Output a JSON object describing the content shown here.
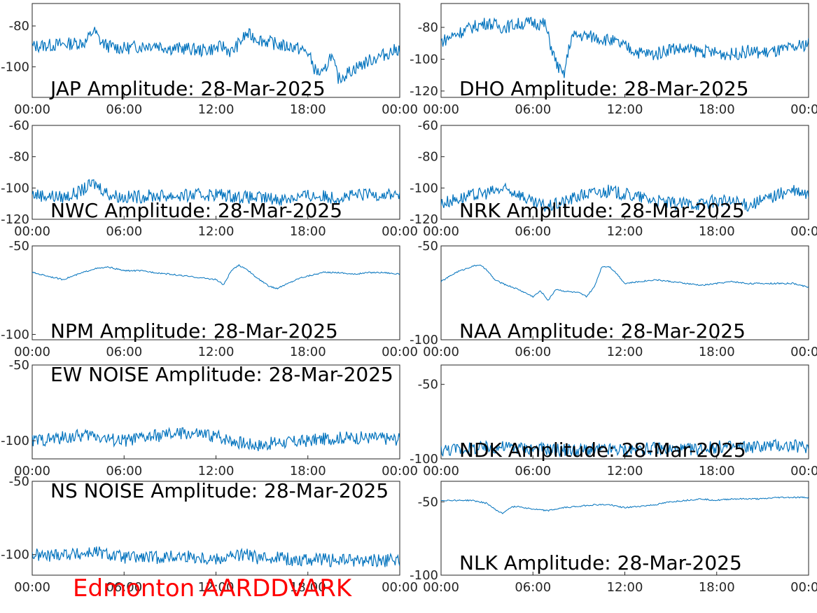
{
  "footer": {
    "label": "Edmonton AARDDVARK",
    "color": "#ff0000"
  },
  "style": {
    "line_color": "#0072bd",
    "axis_color": "#262626"
  },
  "chart_data": [
    {
      "type": "line",
      "title": "JAP Amplitude: 28-Mar-2025",
      "xlabel": "",
      "ylabel": "",
      "xticks": [
        "00:00",
        "06:00",
        "12:00",
        "18:00",
        "00:00"
      ],
      "ylim": [
        -115,
        -69
      ],
      "yticks": [
        -80,
        -100
      ],
      "noisy": true,
      "series": [
        {
          "x": [
            0,
            2,
            3.5,
            4,
            4.5,
            5,
            6,
            7,
            8,
            9,
            10,
            11,
            12,
            12.5,
            13,
            14,
            15,
            16,
            16.5,
            17,
            18,
            18.5,
            19,
            19.5,
            20,
            21,
            22,
            23,
            24
          ],
          "y": [
            -90,
            -89,
            -88,
            -82,
            -88,
            -90,
            -91,
            -90,
            -89,
            -91,
            -91,
            -92,
            -91,
            -90,
            -93,
            -84,
            -87,
            -89,
            -90,
            -90,
            -93,
            -102,
            -104,
            -94,
            -106,
            -101,
            -97,
            -94,
            -91
          ]
        }
      ]
    },
    {
      "type": "line",
      "title": "DHO Amplitude: 28-Mar-2025",
      "xlabel": "",
      "ylabel": "",
      "xticks": [
        "00:00",
        "06:00",
        "12:00",
        "18:00",
        "00:00"
      ],
      "ylim": [
        -124,
        -65
      ],
      "yticks": [
        -80,
        -100,
        -120
      ],
      "noisy": true,
      "series": [
        {
          "x": [
            0,
            1,
            2,
            3,
            4,
            5,
            6,
            6.8,
            7,
            7.5,
            8,
            8.5,
            9,
            10,
            11,
            12,
            13,
            14,
            15,
            16,
            17,
            18,
            19,
            20,
            21,
            22,
            23,
            24
          ],
          "y": [
            -89,
            -84,
            -80,
            -77,
            -80,
            -78,
            -77,
            -78,
            -86,
            -102,
            -111,
            -86,
            -85,
            -86,
            -88,
            -92,
            -96,
            -97,
            -93,
            -94,
            -95,
            -96,
            -97,
            -95,
            -96,
            -95,
            -93,
            -90
          ]
        }
      ]
    },
    {
      "type": "line",
      "title": "NWC Amplitude: 28-Mar-2025",
      "xlabel": "",
      "ylabel": "",
      "xticks": [
        "00:00",
        "06:00",
        "12:00",
        "18:00",
        "00:00"
      ],
      "ylim": [
        -120,
        -60
      ],
      "yticks": [
        -60,
        -80,
        -100,
        -120
      ],
      "noisy": true,
      "series": [
        {
          "x": [
            0,
            2,
            3,
            4,
            4.5,
            5,
            6,
            8,
            10,
            12,
            14,
            16,
            16.5,
            17,
            18,
            20,
            22,
            24
          ],
          "y": [
            -104,
            -106,
            -103,
            -97,
            -100,
            -104,
            -106,
            -105,
            -105,
            -104,
            -106,
            -107,
            -107,
            -106,
            -105,
            -106,
            -104,
            -104
          ]
        }
      ]
    },
    {
      "type": "line",
      "title": "NRK Amplitude: 28-Mar-2025",
      "xlabel": "",
      "ylabel": "",
      "xticks": [
        "00:00",
        "06:00",
        "12:00",
        "18:00",
        "00:00"
      ],
      "ylim": [
        -120,
        -60
      ],
      "yticks": [
        -60,
        -80,
        -100,
        -120
      ],
      "noisy": true,
      "series": [
        {
          "x": [
            0,
            1,
            2,
            3,
            4,
            5,
            6,
            7,
            8,
            9,
            10,
            11,
            12,
            13,
            14,
            15,
            16,
            17,
            18,
            19,
            20,
            21,
            22,
            23,
            24
          ],
          "y": [
            -110,
            -107,
            -105,
            -103,
            -101,
            -103,
            -110,
            -112,
            -109,
            -105,
            -103,
            -102,
            -104,
            -106,
            -108,
            -110,
            -110,
            -110,
            -108,
            -109,
            -111,
            -108,
            -104,
            -102,
            -105
          ]
        }
      ]
    },
    {
      "type": "line",
      "title": "NPM Amplitude: 28-Mar-2025",
      "xlabel": "",
      "ylabel": "",
      "xticks": [
        "00:00",
        "06:00",
        "12:00",
        "18:00",
        "00:00"
      ],
      "ylim": [
        -103,
        -50
      ],
      "yticks": [
        -50,
        -100
      ],
      "noisy": false,
      "series": [
        {
          "x": [
            0,
            1,
            2,
            3,
            4,
            5,
            6,
            7,
            8,
            9,
            10,
            11,
            12,
            12.5,
            13,
            13.5,
            14,
            14.5,
            15,
            15.5,
            16,
            16.5,
            17,
            17.5,
            18,
            19,
            20,
            21,
            22,
            23,
            24
          ],
          "y": [
            -65,
            -67,
            -69,
            -66,
            -63,
            -62,
            -64,
            -64,
            -65,
            -66,
            -67,
            -68,
            -69,
            -72,
            -64,
            -61,
            -63,
            -67,
            -70,
            -73,
            -74,
            -72,
            -70,
            -68,
            -67,
            -65,
            -65,
            -66,
            -65,
            -65,
            -66
          ]
        }
      ]
    },
    {
      "type": "line",
      "title": "NAA Amplitude: 28-Mar-2025",
      "xlabel": "",
      "ylabel": "",
      "xticks": [
        "00:00",
        "06:00",
        "12:00",
        "18:00",
        "00:00"
      ],
      "ylim": [
        -100,
        -50
      ],
      "yticks": [
        -50,
        -100
      ],
      "noisy": false,
      "series": [
        {
          "x": [
            0,
            1,
            2,
            2.5,
            3,
            3.5,
            4,
            5,
            6,
            6.5,
            7,
            7.5,
            8,
            9,
            9.5,
            10,
            10.5,
            11,
            11.5,
            12,
            13,
            14,
            15,
            16,
            17,
            18,
            19,
            20,
            21,
            22,
            23,
            24
          ],
          "y": [
            -69,
            -64,
            -61,
            -60,
            -63,
            -68,
            -70,
            -73,
            -77,
            -74,
            -79,
            -73,
            -74,
            -75,
            -77,
            -72,
            -61,
            -61,
            -65,
            -70,
            -69,
            -68,
            -69,
            -70,
            -71,
            -70,
            -69,
            -70,
            -70,
            -70,
            -70,
            -72
          ]
        }
      ]
    },
    {
      "type": "line",
      "title": "EW NOISE Amplitude: 28-Mar-2025",
      "xlabel": "",
      "ylabel": "",
      "xticks": [
        "00:00",
        "06:00",
        "12:00",
        "18:00",
        "00:00"
      ],
      "ylim": [
        -112,
        -50
      ],
      "yticks": [
        -50,
        -100
      ],
      "noisy": true,
      "series": [
        {
          "x": [
            0,
            2,
            3,
            4,
            5,
            6,
            8,
            10,
            11,
            12,
            14,
            15,
            16,
            17,
            18,
            20,
            22,
            24
          ],
          "y": [
            -100,
            -98,
            -97,
            -96,
            -99,
            -100,
            -97,
            -95,
            -96,
            -97,
            -102,
            -103,
            -101,
            -101,
            -100,
            -98,
            -98,
            -99
          ]
        }
      ]
    },
    {
      "type": "line",
      "title": "NDK Amplitude: 28-Mar-2025",
      "xlabel": "",
      "ylabel": "",
      "xticks": [
        "00:00",
        "06:00",
        "12:00",
        "18:00",
        "00:00"
      ],
      "ylim": [
        -100,
        -37
      ],
      "yticks": [
        -50,
        -100
      ],
      "noisy": true,
      "series": [
        {
          "x": [
            0,
            2,
            4,
            6,
            8,
            10,
            12,
            14,
            16,
            17,
            18,
            20,
            22,
            24
          ],
          "y": [
            -94,
            -93,
            -92,
            -93,
            -94,
            -94,
            -94,
            -93,
            -94,
            -93,
            -92,
            -92,
            -91,
            -92
          ]
        }
      ]
    },
    {
      "type": "line",
      "title": "NS NOISE Amplitude: 28-Mar-2025",
      "xlabel": "",
      "ylabel": "",
      "xticks": [
        "00:00",
        "06:00",
        "12:00",
        "18:00",
        "00:00"
      ],
      "ylim": [
        -114,
        -50
      ],
      "yticks": [
        -50,
        -100
      ],
      "noisy": true,
      "series": [
        {
          "x": [
            0,
            1,
            2,
            3,
            4,
            5,
            6,
            8,
            10,
            12,
            13,
            14,
            15,
            16,
            17,
            18,
            20,
            22,
            24
          ],
          "y": [
            -100,
            -101,
            -99,
            -100,
            -98,
            -100,
            -102,
            -102,
            -101,
            -103,
            -101,
            -100,
            -103,
            -101,
            -104,
            -103,
            -104,
            -104,
            -104
          ]
        }
      ]
    },
    {
      "type": "line",
      "title": "NLK Amplitude: 28-Mar-2025",
      "xlabel": "",
      "ylabel": "",
      "xticks": [
        "00:00",
        "06:00",
        "12:00",
        "18:00",
        "00:00"
      ],
      "ylim": [
        -100,
        -36
      ],
      "yticks": [
        -50,
        -100
      ],
      "noisy": false,
      "series": [
        {
          "x": [
            0,
            1,
            2,
            3,
            3.5,
            4,
            4.5,
            5,
            6,
            7,
            8,
            9,
            10,
            11,
            12,
            13,
            14,
            15,
            16,
            17,
            18,
            19,
            20,
            21,
            22,
            23,
            24
          ],
          "y": [
            -49,
            -49,
            -49,
            -51,
            -55,
            -58,
            -54,
            -53,
            -55,
            -56,
            -54,
            -53,
            -52,
            -52,
            -54,
            -53,
            -52,
            -50,
            -49,
            -48,
            -49,
            -48,
            -48,
            -48,
            -47,
            -47,
            -47
          ]
        }
      ]
    }
  ]
}
